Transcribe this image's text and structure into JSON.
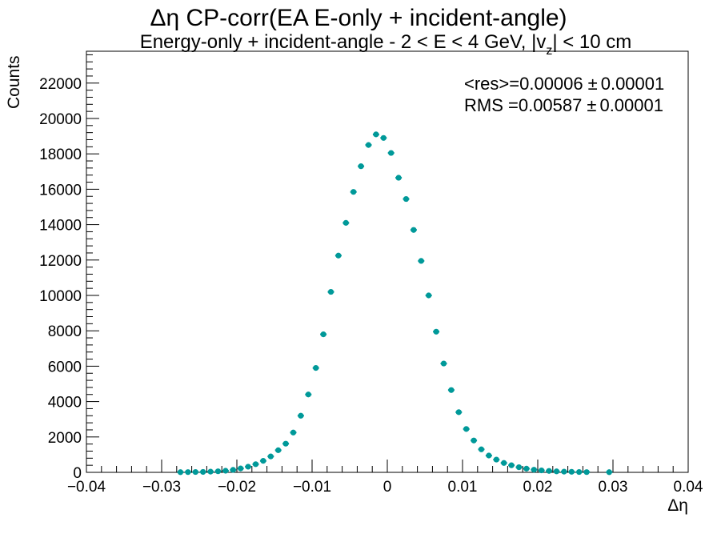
{
  "chart_data": {
    "type": "scatter",
    "title": "Δη CP-corr(EA E-only + incident-angle)",
    "subtitle": {
      "main": "Energy-only + incident-angle   -   2 < E < 4 GeV, |v",
      "sub": "z",
      "tail": "| < 10 cm"
    },
    "xlabel": "Δη",
    "ylabel": "Counts",
    "xlim": [
      -0.04,
      0.04
    ],
    "ylim": [
      0,
      23800
    ],
    "x_ticks": [
      -0.04,
      -0.03,
      -0.02,
      -0.01,
      0,
      0.01,
      0.02,
      0.03,
      0.04
    ],
    "x_tick_labels": [
      "−0.04",
      "−0.03",
      "−0.02",
      "−0.01",
      "0",
      "0.01",
      "0.02",
      "0.03",
      "0.04"
    ],
    "y_ticks": [
      0,
      2000,
      4000,
      6000,
      8000,
      10000,
      12000,
      14000,
      16000,
      18000,
      20000,
      22000
    ],
    "y_tick_labels": [
      "0",
      "2000",
      "4000",
      "6000",
      "8000",
      "10000",
      "12000",
      "14000",
      "16000",
      "18000",
      "20000",
      "22000"
    ],
    "marker_color": "#009999",
    "stats": [
      {
        "label": "<res>=0.00006",
        "pm": "±",
        "err": "0.00001"
      },
      {
        "label": "RMS =0.00587",
        "pm": "±",
        "err": "0.00001"
      }
    ],
    "series": [
      {
        "x": [
          -0.0275,
          -0.0265,
          -0.0255,
          -0.0245,
          -0.0235,
          -0.0225,
          -0.0215,
          -0.0205,
          -0.0195,
          -0.0185,
          -0.0175,
          -0.0165,
          -0.0155,
          -0.0145,
          -0.0135,
          -0.0125,
          -0.0115,
          -0.0105,
          -0.0095,
          -0.0085,
          -0.0075,
          -0.0065,
          -0.0055,
          -0.0045,
          -0.0035,
          -0.0025,
          -0.0015,
          -0.0005,
          0.0005,
          0.0015,
          0.0025,
          0.0035,
          0.0045,
          0.0055,
          0.0065,
          0.0075,
          0.0085,
          0.0095,
          0.0105,
          0.0115,
          0.0125,
          0.0135,
          0.0145,
          0.0155,
          0.0165,
          0.0175,
          0.0185,
          0.0195,
          0.0205,
          0.0215,
          0.0225,
          0.0235,
          0.0245,
          0.0255,
          0.0265,
          0.0295
        ],
        "y": [
          10,
          15,
          20,
          25,
          40,
          60,
          90,
          140,
          220,
          320,
          460,
          650,
          900,
          1250,
          1620,
          2250,
          3200,
          4400,
          5900,
          7800,
          10200,
          12250,
          14100,
          15850,
          17300,
          18500,
          19100,
          18900,
          18050,
          16650,
          15450,
          13700,
          11950,
          10000,
          7950,
          6150,
          4650,
          3400,
          2450,
          1800,
          1300,
          950,
          720,
          530,
          400,
          290,
          210,
          150,
          110,
          80,
          55,
          40,
          30,
          20,
          15,
          10
        ]
      }
    ]
  }
}
